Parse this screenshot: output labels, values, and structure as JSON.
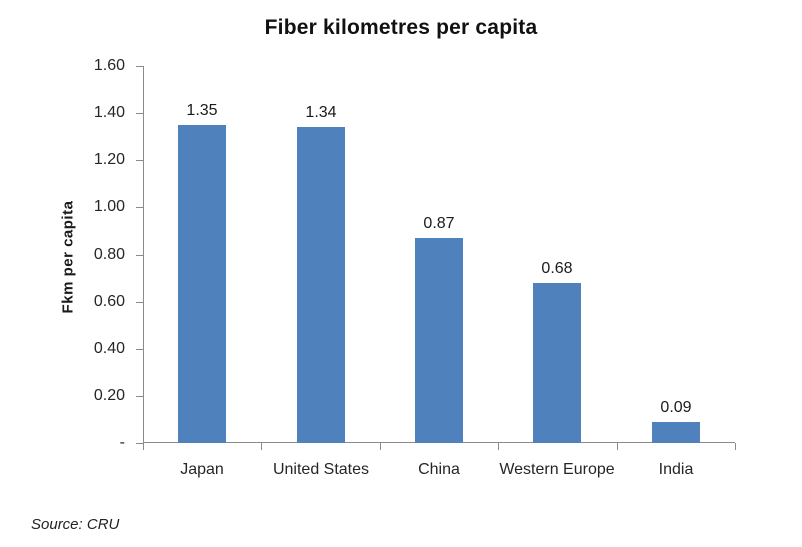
{
  "source_note": "Source: CRU",
  "chart_data": {
    "type": "bar",
    "title": "Fiber kilometres per capita",
    "ylabel": "Fkm per capita",
    "xlabel": "",
    "categories": [
      "Japan",
      "United States",
      "China",
      "Western Europe",
      "India"
    ],
    "values": [
      1.35,
      1.34,
      0.87,
      0.68,
      0.09
    ],
    "value_labels": [
      "1.35",
      "1.34",
      "0.87",
      "0.68",
      "0.09"
    ],
    "ylim": [
      0,
      1.6
    ],
    "ytick_interval": 0.2,
    "ytick_labels": [
      "-",
      "0.20",
      "0.40",
      "0.60",
      "0.80",
      "1.00",
      "1.20",
      "1.40",
      "1.60"
    ],
    "grid": false,
    "legend": "none",
    "bar_color": "#4F81BD",
    "axis_color": "#8a8a8a",
    "title_color": "#111111",
    "text_color": "#262626"
  }
}
